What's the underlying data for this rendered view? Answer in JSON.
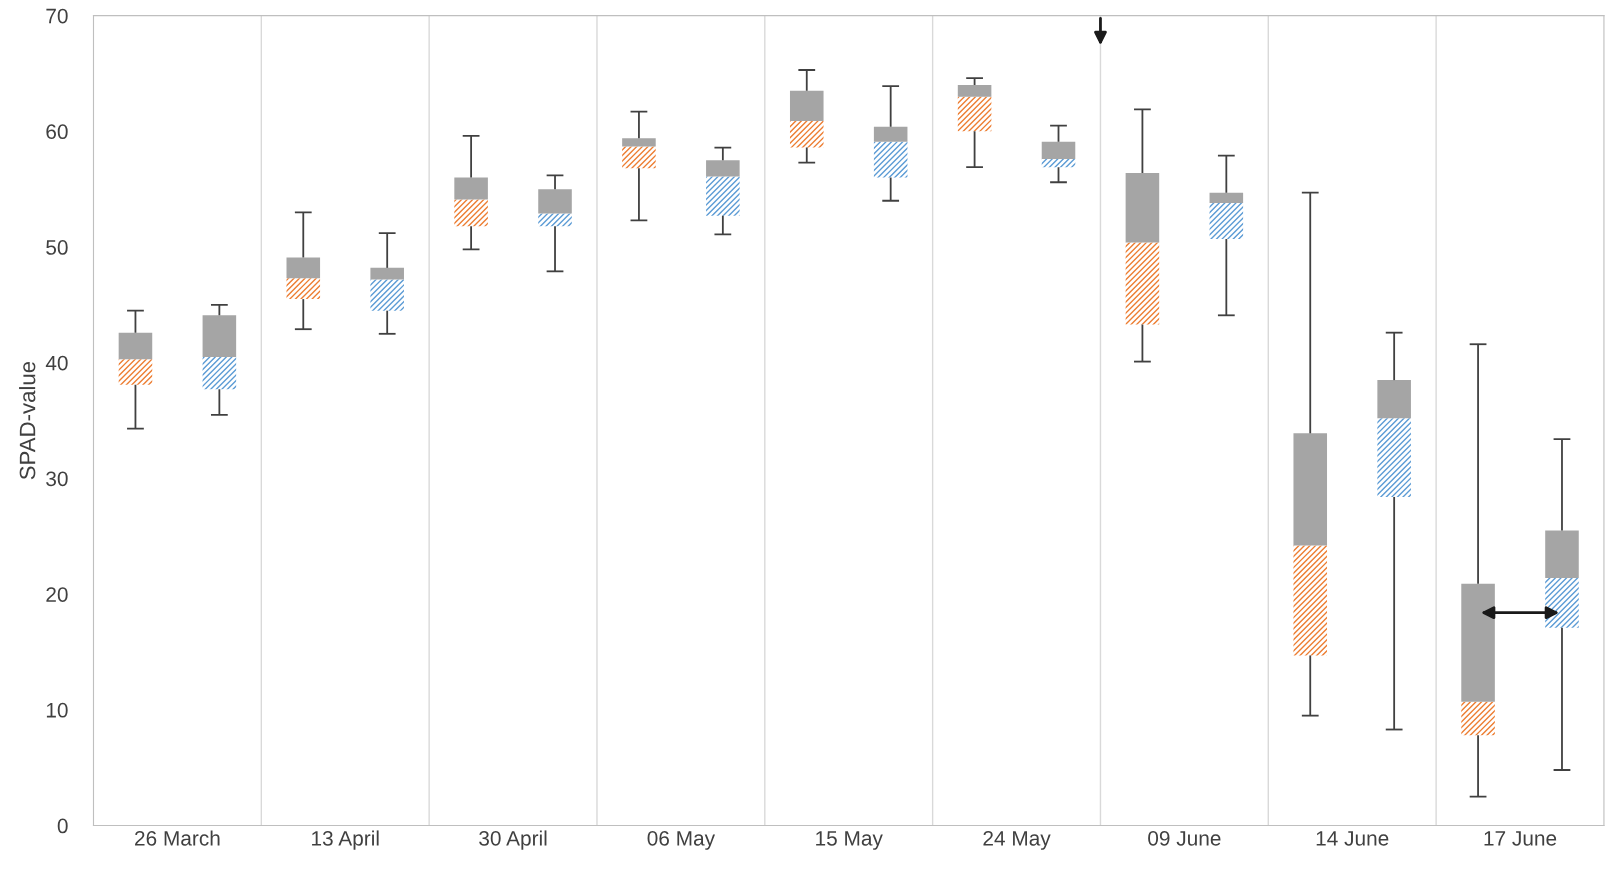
{
  "chart_data": {
    "type": "box",
    "ylabel": "SPAD-value",
    "categories": [
      "26 March",
      "13 April",
      "30 April",
      "06 May",
      "15 May",
      "24 May",
      "09 June",
      "14 June",
      "17 June"
    ],
    "ylim": [
      0,
      70
    ],
    "yticks": [
      0,
      10,
      20,
      30,
      40,
      50,
      60,
      70
    ],
    "grid": "x",
    "legend": false,
    "series": [
      {
        "color": "#ed7d31",
        "boxes": [
          {
            "low": 34.3,
            "q1": 38.1,
            "median": 40.3,
            "q3": 42.6,
            "high": 44.5
          },
          {
            "low": 42.9,
            "q1": 45.5,
            "median": 47.3,
            "q3": 49.1,
            "high": 53.0
          },
          {
            "low": 49.8,
            "q1": 51.8,
            "median": 54.1,
            "q3": 56.0,
            "high": 59.6
          },
          {
            "low": 52.3,
            "q1": 56.8,
            "median": 58.7,
            "q3": 59.4,
            "high": 61.7
          },
          {
            "low": 57.3,
            "q1": 58.6,
            "median": 60.9,
            "q3": 63.5,
            "high": 65.3
          },
          {
            "low": 56.9,
            "q1": 60.0,
            "median": 63.0,
            "q3": 64.0,
            "high": 64.6
          },
          {
            "low": 40.1,
            "q1": 43.3,
            "median": 50.4,
            "q3": 56.4,
            "high": 61.9
          },
          {
            "low": 9.5,
            "q1": 14.7,
            "median": 24.2,
            "q3": 33.9,
            "high": 54.7
          },
          {
            "low": 2.5,
            "q1": 7.8,
            "median": 10.7,
            "q3": 20.9,
            "high": 41.6
          }
        ]
      },
      {
        "color": "#5b9bd5",
        "boxes": [
          {
            "low": 35.5,
            "q1": 37.7,
            "median": 40.5,
            "q3": 44.1,
            "high": 45.0
          },
          {
            "low": 42.5,
            "q1": 44.5,
            "median": 47.2,
            "q3": 48.2,
            "high": 51.2
          },
          {
            "low": 47.9,
            "q1": 51.8,
            "median": 52.9,
            "q3": 55.0,
            "high": 56.2
          },
          {
            "low": 51.1,
            "q1": 52.7,
            "median": 56.1,
            "q3": 57.5,
            "high": 58.6
          },
          {
            "low": 54.0,
            "q1": 56.0,
            "median": 59.1,
            "q3": 60.4,
            "high": 63.9
          },
          {
            "low": 55.6,
            "q1": 56.9,
            "median": 57.6,
            "q3": 59.1,
            "high": 60.5
          },
          {
            "low": 44.1,
            "q1": 50.7,
            "median": 53.8,
            "q3": 54.7,
            "high": 57.9
          },
          {
            "low": 8.3,
            "q1": 28.4,
            "median": 35.2,
            "q3": 38.5,
            "high": 42.6
          },
          {
            "low": 4.8,
            "q1": 17.1,
            "median": 21.4,
            "q3": 25.5,
            "high": 33.4
          }
        ]
      }
    ]
  }
}
